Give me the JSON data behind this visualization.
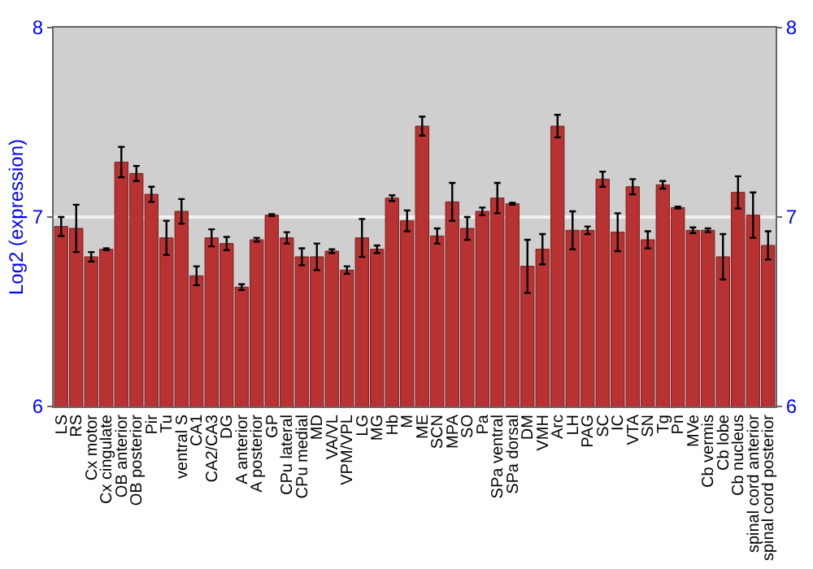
{
  "chart_data": {
    "type": "bar",
    "ylabel": "Log2 (expression)",
    "categories": [
      "LS",
      "RS",
      "Cx motor",
      "Cx cingulate",
      "OB anterior",
      "OB posterior",
      "Pir",
      "Tu",
      "ventral S",
      "CA1",
      "CA2/CA3",
      "DG",
      "A anterior",
      "A posterior",
      "GP",
      "CPu lateral",
      "CPu medial",
      "MD",
      "VA/VL",
      "VPM/VPL",
      "LG",
      "MG",
      "Hb",
      "M",
      "ME",
      "SCN",
      "MPA",
      "SO",
      "Pa",
      "SPa ventral",
      "SPa dorsal",
      "DM",
      "VMH",
      "Arc",
      "LH",
      "PAG",
      "SC",
      "IC",
      "VTA",
      "SN",
      "Tg",
      "Pn",
      "MVe",
      "Cb vermis",
      "Cb lobe",
      "Cb nucleus",
      "spinal cord anterior",
      "spinal cord posterior"
    ],
    "values": [
      6.95,
      6.94,
      6.79,
      6.83,
      7.29,
      7.23,
      7.12,
      6.89,
      7.03,
      6.69,
      6.89,
      6.86,
      6.63,
      6.88,
      7.01,
      6.89,
      6.79,
      6.79,
      6.82,
      6.72,
      6.89,
      6.83,
      7.1,
      6.98,
      7.48,
      6.9,
      7.08,
      6.94,
      7.03,
      7.1,
      7.07,
      6.74,
      6.83,
      7.48,
      6.93,
      6.93,
      7.2,
      6.92,
      7.16,
      6.88,
      7.17,
      7.05,
      6.93,
      6.93,
      6.79,
      7.13,
      7.01,
      6.85
    ],
    "errors": [
      0.05,
      0.125,
      0.025,
      0.005,
      0.08,
      0.04,
      0.04,
      0.09,
      0.065,
      0.05,
      0.045,
      0.035,
      0.015,
      0.01,
      0.005,
      0.03,
      0.045,
      0.07,
      0.01,
      0.02,
      0.1,
      0.02,
      0.015,
      0.055,
      0.05,
      0.04,
      0.1,
      0.06,
      0.02,
      0.08,
      0.005,
      0.14,
      0.08,
      0.06,
      0.1,
      0.02,
      0.04,
      0.1,
      0.04,
      0.045,
      0.02,
      0.005,
      0.015,
      0.01,
      0.12,
      0.085,
      0.12,
      0.075
    ],
    "color": "#b83232",
    "ylim": [
      6,
      8
    ],
    "yticks": [
      6,
      7,
      8
    ],
    "y2lim": [
      6,
      8
    ],
    "y2ticks": [
      6,
      7,
      8
    ],
    "grid": "y",
    "legend": false
  }
}
